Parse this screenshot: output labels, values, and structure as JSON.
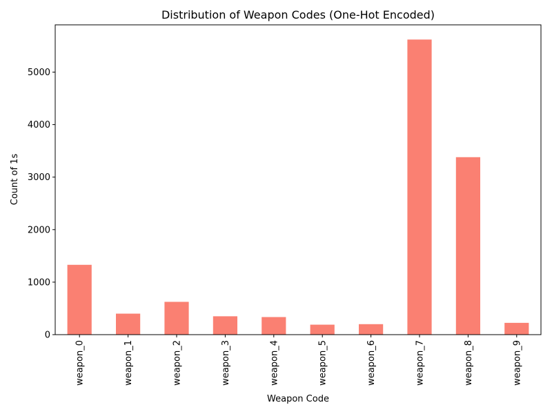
{
  "chart_data": {
    "type": "bar",
    "title": "Distribution of Weapon Codes (One-Hot Encoded)",
    "xlabel": "Weapon Code",
    "ylabel": "Count of 1s",
    "categories": [
      "weapon_0",
      "weapon_1",
      "weapon_2",
      "weapon_3",
      "weapon_4",
      "weapon_5",
      "weapon_6",
      "weapon_7",
      "weapon_8",
      "weapon_9"
    ],
    "values": [
      1330,
      400,
      625,
      350,
      335,
      190,
      200,
      5620,
      3380,
      225
    ],
    "ylim": [
      0,
      5900
    ],
    "yticks": [
      0,
      1000,
      2000,
      3000,
      4000,
      5000
    ],
    "bar_color": "#fa8072",
    "grid": false,
    "legend": "none"
  }
}
